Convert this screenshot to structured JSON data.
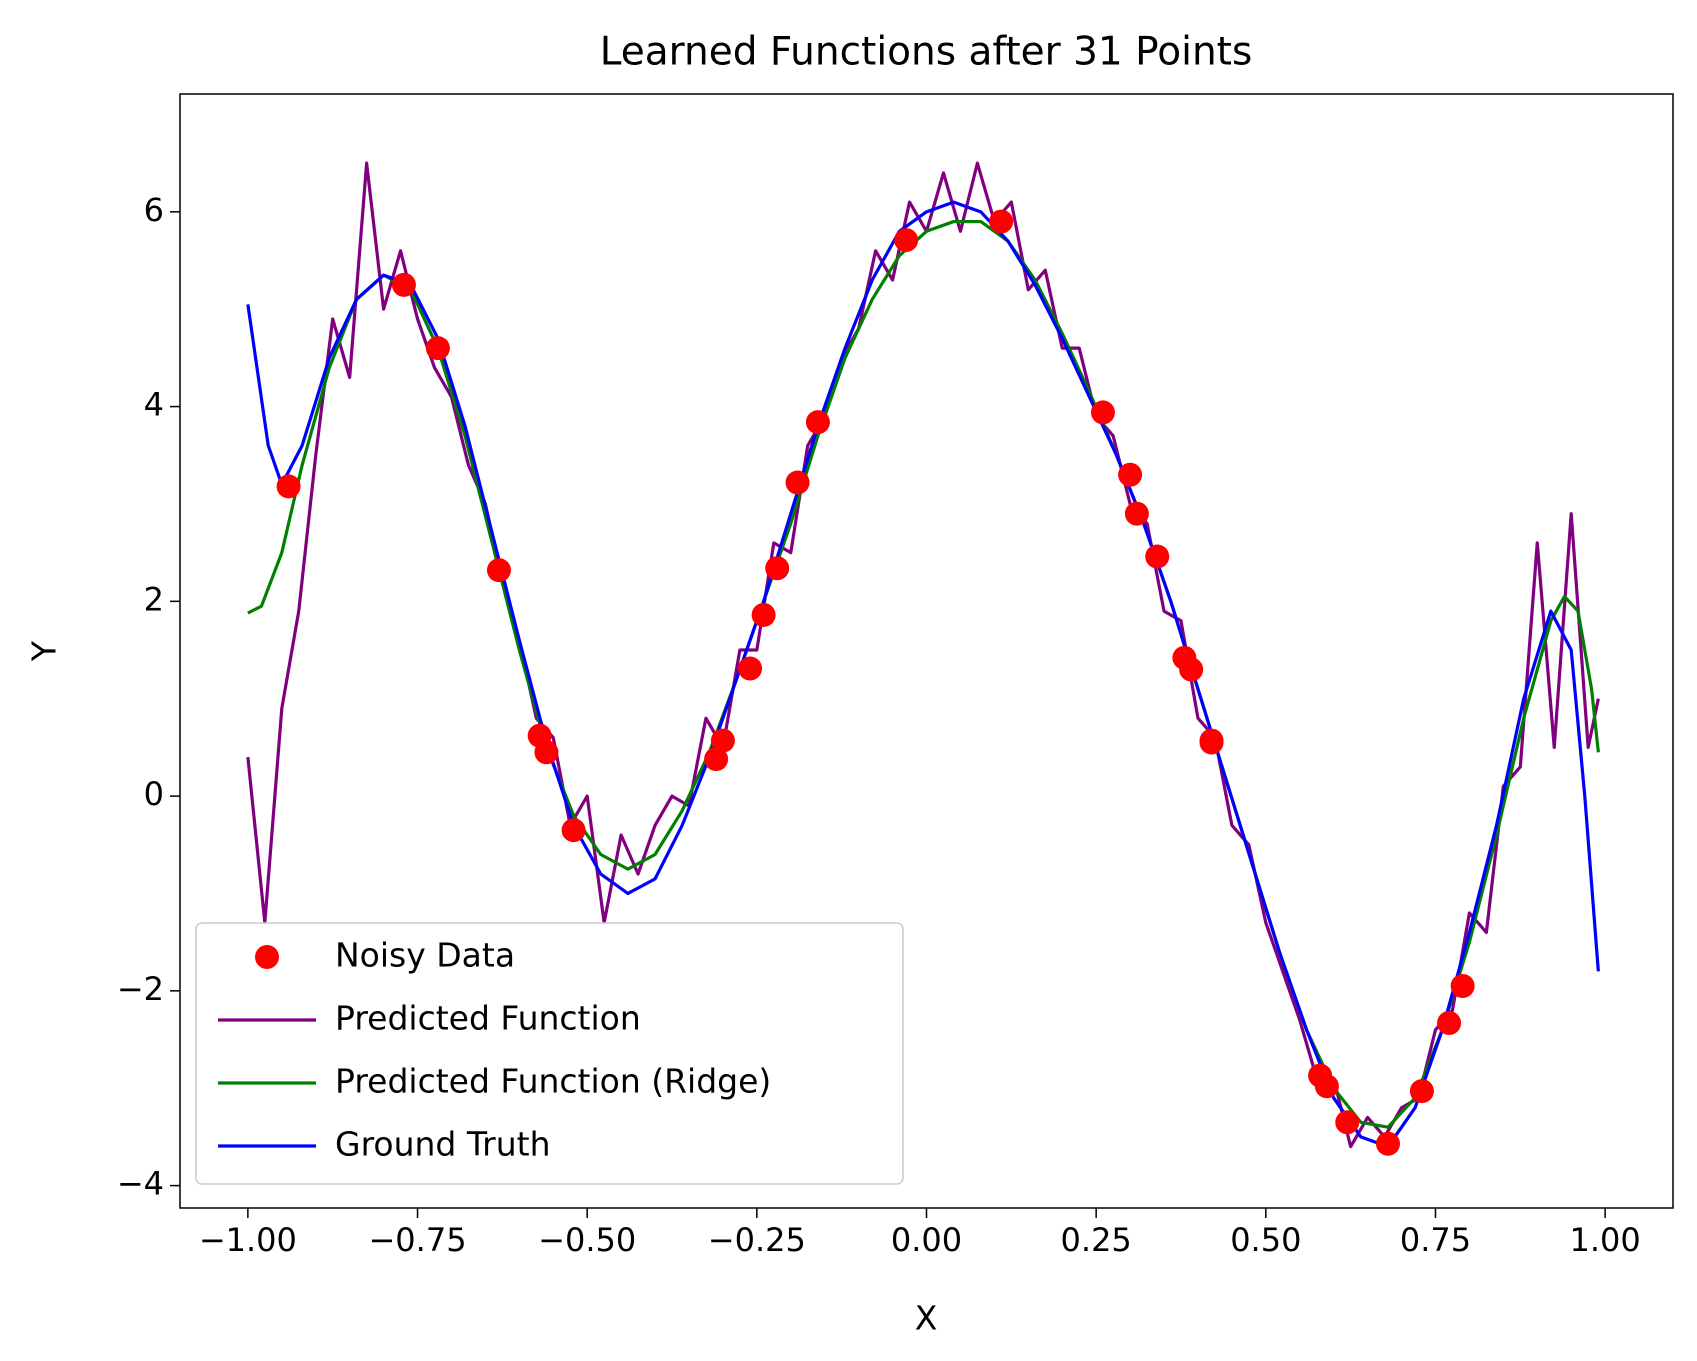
{
  "chart_data": {
    "type": "line",
    "title": "Learned Functions after 31 Points",
    "xlabel": "X",
    "ylabel": "Y",
    "xlim": [
      -1.1,
      1.1
    ],
    "ylim": [
      -4.23,
      7.21
    ],
    "xticks": [
      {
        "value": -1,
        "label": "−1.00"
      },
      {
        "value": -0.75,
        "label": "−0.75"
      },
      {
        "value": -0.5,
        "label": "−0.50"
      },
      {
        "value": -0.25,
        "label": "−0.25"
      },
      {
        "value": 0,
        "label": "0.00"
      },
      0.25,
      {
        "value": 0.5,
        "label": "0.50"
      },
      0.75,
      {
        "value": 1,
        "label": "1.00"
      }
    ],
    "yticks": [
      {
        "value": -4,
        "label": "−4"
      },
      {
        "value": -2,
        "label": "−2"
      },
      0,
      2,
      4,
      6
    ],
    "legend": "lower left",
    "series": [
      {
        "name": "Noisy Data",
        "type": "scatter",
        "color": "#ff0000",
        "x": [
          -0.94,
          -0.77,
          -0.72,
          -0.63,
          -0.57,
          -0.56,
          -0.52,
          -0.31,
          -0.3,
          -0.26,
          -0.24,
          -0.22,
          -0.19,
          -0.16,
          -0.03,
          0.11,
          0.26,
          0.3,
          0.31,
          0.34,
          0.38,
          0.39,
          0.42,
          0.42,
          0.58,
          0.59,
          0.62,
          0.68,
          0.73,
          0.77,
          0.79
        ],
        "values": [
          3.18,
          5.25,
          4.6,
          2.32,
          0.62,
          0.45,
          -0.35,
          0.38,
          0.57,
          1.31,
          1.86,
          2.34,
          3.22,
          3.84,
          5.71,
          5.9,
          3.94,
          3.3,
          2.9,
          2.46,
          1.42,
          1.3,
          0.57,
          0.55,
          -2.87,
          -2.98,
          -3.35,
          -3.57,
          -3.03,
          -2.33,
          -1.95
        ]
      },
      {
        "name": "Predicted Function",
        "type": "line",
        "color": "#800080",
        "x": [
          -1,
          -0.975,
          -0.95,
          -0.925,
          -0.9,
          -0.875,
          -0.85,
          -0.825,
          -0.8,
          -0.775,
          -0.75,
          -0.725,
          -0.7,
          -0.675,
          -0.65,
          -0.625,
          -0.6,
          -0.575,
          -0.55,
          -0.525,
          -0.5,
          -0.475,
          -0.45,
          -0.425,
          -0.4,
          -0.375,
          -0.35,
          -0.325,
          -0.3,
          -0.275,
          -0.25,
          -0.225,
          -0.2,
          -0.175,
          -0.15,
          -0.125,
          -0.1,
          -0.075,
          -0.05,
          -0.025,
          0,
          0.025,
          0.05,
          0.075,
          0.1,
          0.125,
          0.15,
          0.175,
          0.2,
          0.225,
          0.25,
          0.275,
          0.3,
          0.325,
          0.35,
          0.375,
          0.4,
          0.425,
          0.45,
          0.475,
          0.5,
          0.525,
          0.55,
          0.575,
          0.6,
          0.625,
          0.65,
          0.675,
          0.7,
          0.725,
          0.75,
          0.775,
          0.8,
          0.825,
          0.85,
          0.875,
          0.9,
          0.925,
          0.95,
          0.975,
          0.99
        ],
        "values": [
          0.4,
          -1.3,
          0.9,
          1.9,
          3.5,
          4.9,
          4.3,
          6.5,
          5.0,
          5.6,
          4.9,
          4.4,
          4.1,
          3.4,
          3.0,
          2.2,
          1.6,
          0.8,
          0.6,
          -0.3,
          0.0,
          -1.3,
          -0.4,
          -0.8,
          -0.3,
          0.0,
          -0.1,
          0.8,
          0.5,
          1.5,
          1.5,
          2.6,
          2.5,
          3.6,
          3.9,
          4.5,
          4.8,
          5.6,
          5.3,
          6.1,
          5.8,
          6.4,
          5.8,
          6.5,
          5.9,
          6.1,
          5.2,
          5.4,
          4.6,
          4.6,
          3.9,
          3.7,
          3.0,
          2.8,
          1.9,
          1.8,
          0.8,
          0.6,
          -0.3,
          -0.5,
          -1.3,
          -1.8,
          -2.3,
          -2.9,
          -2.9,
          -3.6,
          -3.3,
          -3.5,
          -3.2,
          -3.1,
          -2.4,
          -2.2,
          -1.2,
          -1.4,
          0.1,
          0.3,
          2.6,
          0.5,
          2.9,
          0.5,
          1.0
        ]
      },
      {
        "name": "Predicted Function (Ridge)",
        "type": "line",
        "color": "#008000",
        "x": [
          -1,
          -0.98,
          -0.95,
          -0.92,
          -0.88,
          -0.84,
          -0.8,
          -0.76,
          -0.72,
          -0.68,
          -0.64,
          -0.6,
          -0.56,
          -0.52,
          -0.48,
          -0.44,
          -0.4,
          -0.36,
          -0.32,
          -0.28,
          -0.24,
          -0.2,
          -0.16,
          -0.12,
          -0.08,
          -0.04,
          0,
          0.04,
          0.08,
          0.12,
          0.16,
          0.2,
          0.24,
          0.28,
          0.32,
          0.36,
          0.4,
          0.44,
          0.48,
          0.52,
          0.56,
          0.6,
          0.64,
          0.68,
          0.72,
          0.76,
          0.8,
          0.84,
          0.88,
          0.92,
          0.94,
          0.96,
          0.98,
          0.99
        ],
        "values": [
          1.88,
          1.95,
          2.5,
          3.4,
          4.4,
          5.1,
          5.35,
          5.2,
          4.6,
          3.7,
          2.6,
          1.5,
          0.5,
          -0.2,
          -0.6,
          -0.75,
          -0.6,
          -0.15,
          0.45,
          1.2,
          2.0,
          2.8,
          3.7,
          4.5,
          5.1,
          5.55,
          5.8,
          5.9,
          5.9,
          5.7,
          5.3,
          4.75,
          4.15,
          3.5,
          2.8,
          2.0,
          1.1,
          0.2,
          -0.7,
          -1.6,
          -2.4,
          -3.0,
          -3.35,
          -3.4,
          -3.1,
          -2.4,
          -1.5,
          -0.4,
          0.8,
          1.8,
          2.05,
          1.9,
          1.1,
          0.45
        ]
      },
      {
        "name": "Ground Truth",
        "type": "line",
        "color": "#0000ff",
        "x": [
          -1,
          -0.97,
          -0.95,
          -0.92,
          -0.88,
          -0.84,
          -0.8,
          -0.76,
          -0.72,
          -0.68,
          -0.64,
          -0.6,
          -0.56,
          -0.52,
          -0.48,
          -0.44,
          -0.4,
          -0.36,
          -0.32,
          -0.28,
          -0.24,
          -0.2,
          -0.16,
          -0.12,
          -0.08,
          -0.04,
          0,
          0.04,
          0.08,
          0.12,
          0.16,
          0.2,
          0.24,
          0.28,
          0.32,
          0.36,
          0.4,
          0.44,
          0.48,
          0.52,
          0.56,
          0.6,
          0.64,
          0.68,
          0.72,
          0.76,
          0.8,
          0.84,
          0.88,
          0.92,
          0.95,
          0.97,
          0.99
        ],
        "values": [
          5.05,
          3.6,
          3.2,
          3.6,
          4.5,
          5.1,
          5.35,
          5.25,
          4.7,
          3.8,
          2.7,
          1.6,
          0.55,
          -0.3,
          -0.8,
          -1.0,
          -0.85,
          -0.3,
          0.4,
          1.2,
          2.0,
          2.9,
          3.8,
          4.6,
          5.3,
          5.8,
          6.0,
          6.1,
          6.0,
          5.7,
          5.25,
          4.7,
          4.1,
          3.5,
          2.8,
          2.0,
          1.1,
          0.2,
          -0.7,
          -1.6,
          -2.4,
          -3.1,
          -3.5,
          -3.6,
          -3.2,
          -2.4,
          -1.4,
          -0.3,
          1.0,
          1.9,
          1.5,
          0.0,
          -1.8
        ]
      }
    ]
  }
}
